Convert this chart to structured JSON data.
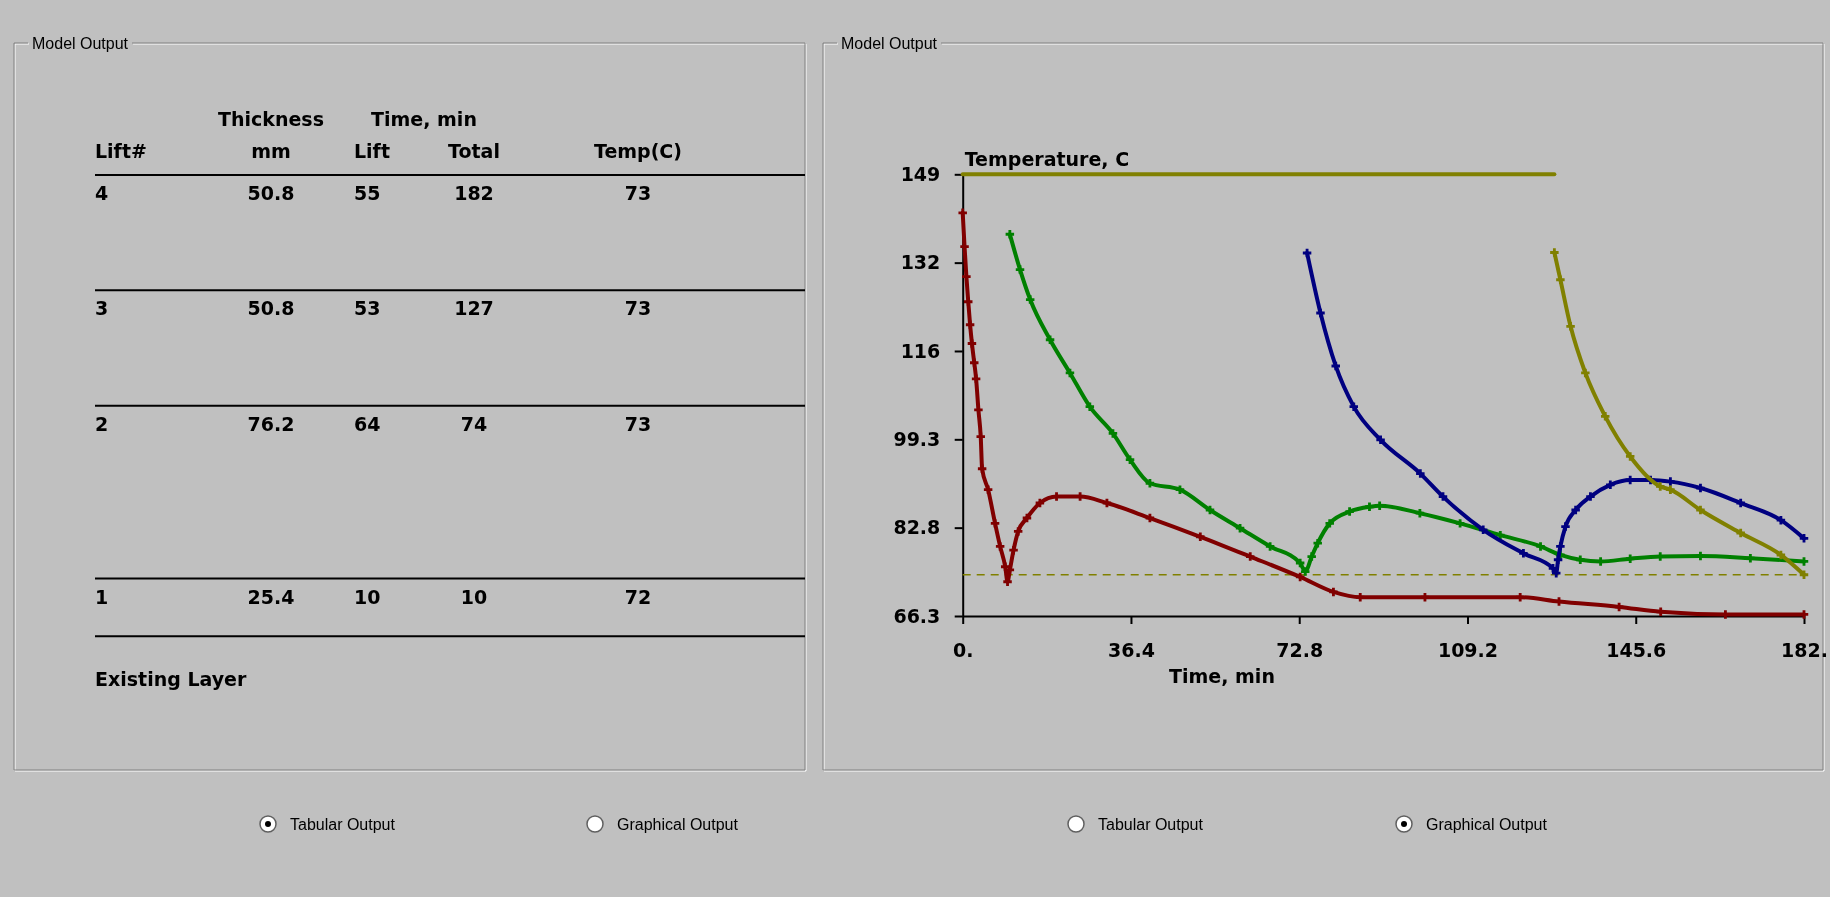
{
  "chart_data": [
    {
      "type": "other",
      "title": "Model Output",
      "categories": [
        "Lift#",
        "mm",
        "Lift",
        "Total",
        "Temp(C)"
      ],
      "y_categories": [
        "4",
        "3",
        "2",
        "1"
      ],
      "cell_labels": [
        [
          "50.8",
          "55",
          "182",
          "73"
        ],
        [
          "50.8",
          "53",
          "127",
          "73"
        ],
        [
          "76.2",
          "64",
          "74",
          "73"
        ],
        [
          "25.4",
          "10",
          "10",
          "72"
        ]
      ],
      "annotations": [
        "Thickness",
        "Time, min",
        "Existing Layer",
        "Tabular Output",
        "Graphical Output"
      ]
    },
    {
      "type": "line",
      "title": "Model Output",
      "xlabel": "Time, min",
      "ylabel": "Temperature, C",
      "xlim": [
        0,
        182
      ],
      "xticks": [
        {
          "value": 0,
          "label": "0."
        },
        36.4,
        72.8,
        109.2,
        145.6,
        {
          "value": 182,
          "label": "182."
        }
      ],
      "ylim": [
        66.3,
        148.8
      ],
      "yticks": [
        66.3,
        82.8,
        99.3,
        {
          "value": 115.8,
          "label": "116"
        },
        {
          "value": 132.3,
          "label": "132"
        },
        {
          "value": 148.8,
          "label": "149"
        }
      ],
      "marker": "cross",
      "line_style": "solid",
      "ref_lines": [
        {
          "axis": "y",
          "value": 74,
          "color": "#808000",
          "line_style": "dashed"
        }
      ],
      "annotations": [
        "Tabular Output",
        "Graphical Output"
      ],
      "series": [
        {
          "color": "#800000",
          "x": [
            0,
            0.4,
            0.8,
            1.2,
            1.6,
            2.0,
            2.5,
            2.9,
            3.4,
            3.9,
            4.2,
            5.5,
            7,
            8.1,
            9.2,
            9.7,
            10.2,
            11,
            12,
            13.9,
            16.7,
            20.3,
            25.4,
            31.2,
            40.5,
            51.4,
            62.2,
            73,
            80.2,
            86,
            100,
            120.6,
            129,
            142,
            151,
            165,
            182
          ],
          "values": [
            141.6,
            135.3,
            129.7,
            125,
            120.7,
            117.2,
            113.6,
            110.6,
            104.8,
            99.8,
            93.8,
            89.9,
            83.6,
            79.3,
            75.5,
            72.7,
            74.9,
            78.6,
            82.1,
            84.6,
            87.4,
            88.6,
            88.6,
            87.4,
            84.6,
            81.1,
            77.4,
            73.6,
            70.8,
            69.8,
            69.8,
            69.8,
            69,
            68,
            67.1,
            66.6,
            66.6
          ]
        },
        {
          "color": "#008000",
          "x": [
            10.2,
            12.4,
            14.6,
            18.9,
            23.2,
            27.5,
            32.5,
            36.2,
            40.5,
            47,
            53.5,
            60,
            66.5,
            73,
            74.1,
            75.5,
            76.8,
            79.4,
            83.7,
            88,
            90.2,
            98.9,
            107.6,
            116.3,
            125,
            129.3,
            133.6,
            138,
            144.4,
            150.9,
            159.6,
            170.4,
            182
          ],
          "values": [
            137.6,
            131,
            125.4,
            117.9,
            111.7,
            105.4,
            100.4,
            95.5,
            91.1,
            89.9,
            86.1,
            82.7,
            79.3,
            76.2,
            74.6,
            77.4,
            79.9,
            83.6,
            85.8,
            86.7,
            86.9,
            85.5,
            83.6,
            81.4,
            79.3,
            77.7,
            76.8,
            76.5,
            77,
            77.4,
            77.5,
            77.1,
            76.5
          ]
        },
        {
          "color": "#000080",
          "x": [
            74.5,
            77.4,
            80.7,
            84.6,
            90.4,
            99,
            103.9,
            112.6,
            121.3,
            127.7,
            128.4,
            128.8,
            129.3,
            130.4,
            132.6,
            135.8,
            140.1,
            144.4,
            148.8,
            153.1,
            159.6,
            168.3,
            177,
            182
          ],
          "values": [
            134.1,
            122.9,
            113,
            105.4,
            99.2,
            92.9,
            88.6,
            82.4,
            78,
            75.2,
            74.3,
            76.8,
            79.3,
            83,
            86.1,
            88.6,
            90.8,
            91.7,
            91.7,
            91.4,
            90.2,
            87.4,
            84.2,
            80.8
          ]
        },
        {
          "color": "#808000",
          "x": [
            128,
            129.3,
            131.5,
            134.7,
            139,
            144.4,
            150.9,
            153.1,
            159.6,
            168.3,
            177,
            182
          ],
          "values": [
            134.2,
            129.1,
            120.4,
            111.7,
            103.6,
            96.1,
            90.5,
            89.9,
            86.1,
            81.8,
            77.7,
            74
          ]
        },
        {
          "color": "#808000",
          "marker": "none",
          "x": [
            0,
            128
          ],
          "values": [
            148.8,
            148.8
          ]
        }
      ]
    }
  ]
}
